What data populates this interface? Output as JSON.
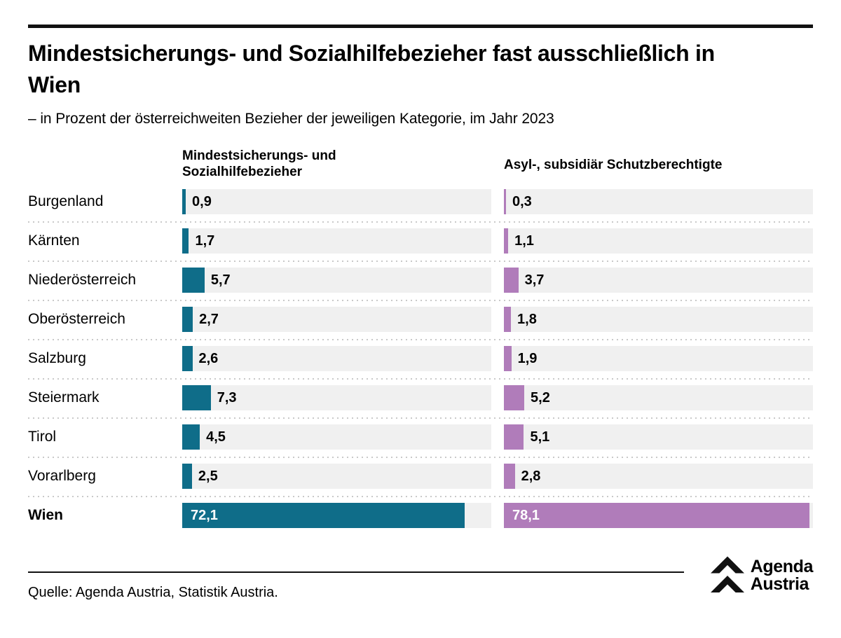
{
  "header": {
    "title": "Mindestsicherungs- und Sozialhilfebezieher fast ausschließlich in Wien",
    "subtitle": "– in Prozent der österreichweiten Bezieher der jeweiligen Kategorie, im Jahr 2023"
  },
  "column_headers": {
    "col1": "Mindestsicherungs- und Sozialhilfebezieher",
    "col2": "Asyl-, subsidiär Schutzberechtigte"
  },
  "colors": {
    "series1": "#0f6d89",
    "series2": "#b07cba",
    "track": "#f0f0f0",
    "separator": "#c9c9c9",
    "text": "#000000",
    "rule": "#111111",
    "inside_value_text": "#ffffff"
  },
  "chart_data": {
    "type": "bar",
    "orientation": "horizontal",
    "title": "Mindestsicherungs- und Sozialhilfebezieher fast ausschließlich in Wien",
    "subtitle": "– in Prozent der österreichweiten Bezieher der jeweiligen Kategorie, im Jahr 2023",
    "unit": "Prozent",
    "year": "2023",
    "categories": [
      "Burgenland",
      "Kärnten",
      "Niederösterreich",
      "Oberösterreich",
      "Salzburg",
      "Steiermark",
      "Tirol",
      "Vorarlberg",
      "Wien"
    ],
    "series": [
      {
        "name": "Mindestsicherungs- und Sozialhilfebezieher",
        "color": "#0f6d89",
        "values": [
          0.9,
          1.7,
          5.7,
          2.7,
          2.6,
          7.3,
          4.5,
          2.5,
          72.1
        ],
        "labels": [
          "0,9",
          "1,7",
          "5,7",
          "2,7",
          "2,6",
          "7,3",
          "4,5",
          "2,5",
          "72,1"
        ]
      },
      {
        "name": "Asyl-, subsidiär Schutzberechtigte",
        "color": "#b07cba",
        "values": [
          0.3,
          1.1,
          3.7,
          1.8,
          1.9,
          5.2,
          5.1,
          2.8,
          78.1
        ],
        "labels": [
          "0,3",
          "1,1",
          "3,7",
          "1,8",
          "1,9",
          "5,2",
          "5,1",
          "2,8",
          "78,1"
        ]
      }
    ],
    "xlim": [
      0,
      79
    ],
    "grid": false,
    "legend_position": "column-headers",
    "highlight_category": "Wien",
    "value_format": "decimal-comma"
  },
  "footer": {
    "source": "Quelle: Agenda Austria, Statistik Austria.",
    "logo": {
      "icon": "double-chevron-up-icon",
      "line1": "Agenda",
      "line2": "Austria"
    }
  }
}
